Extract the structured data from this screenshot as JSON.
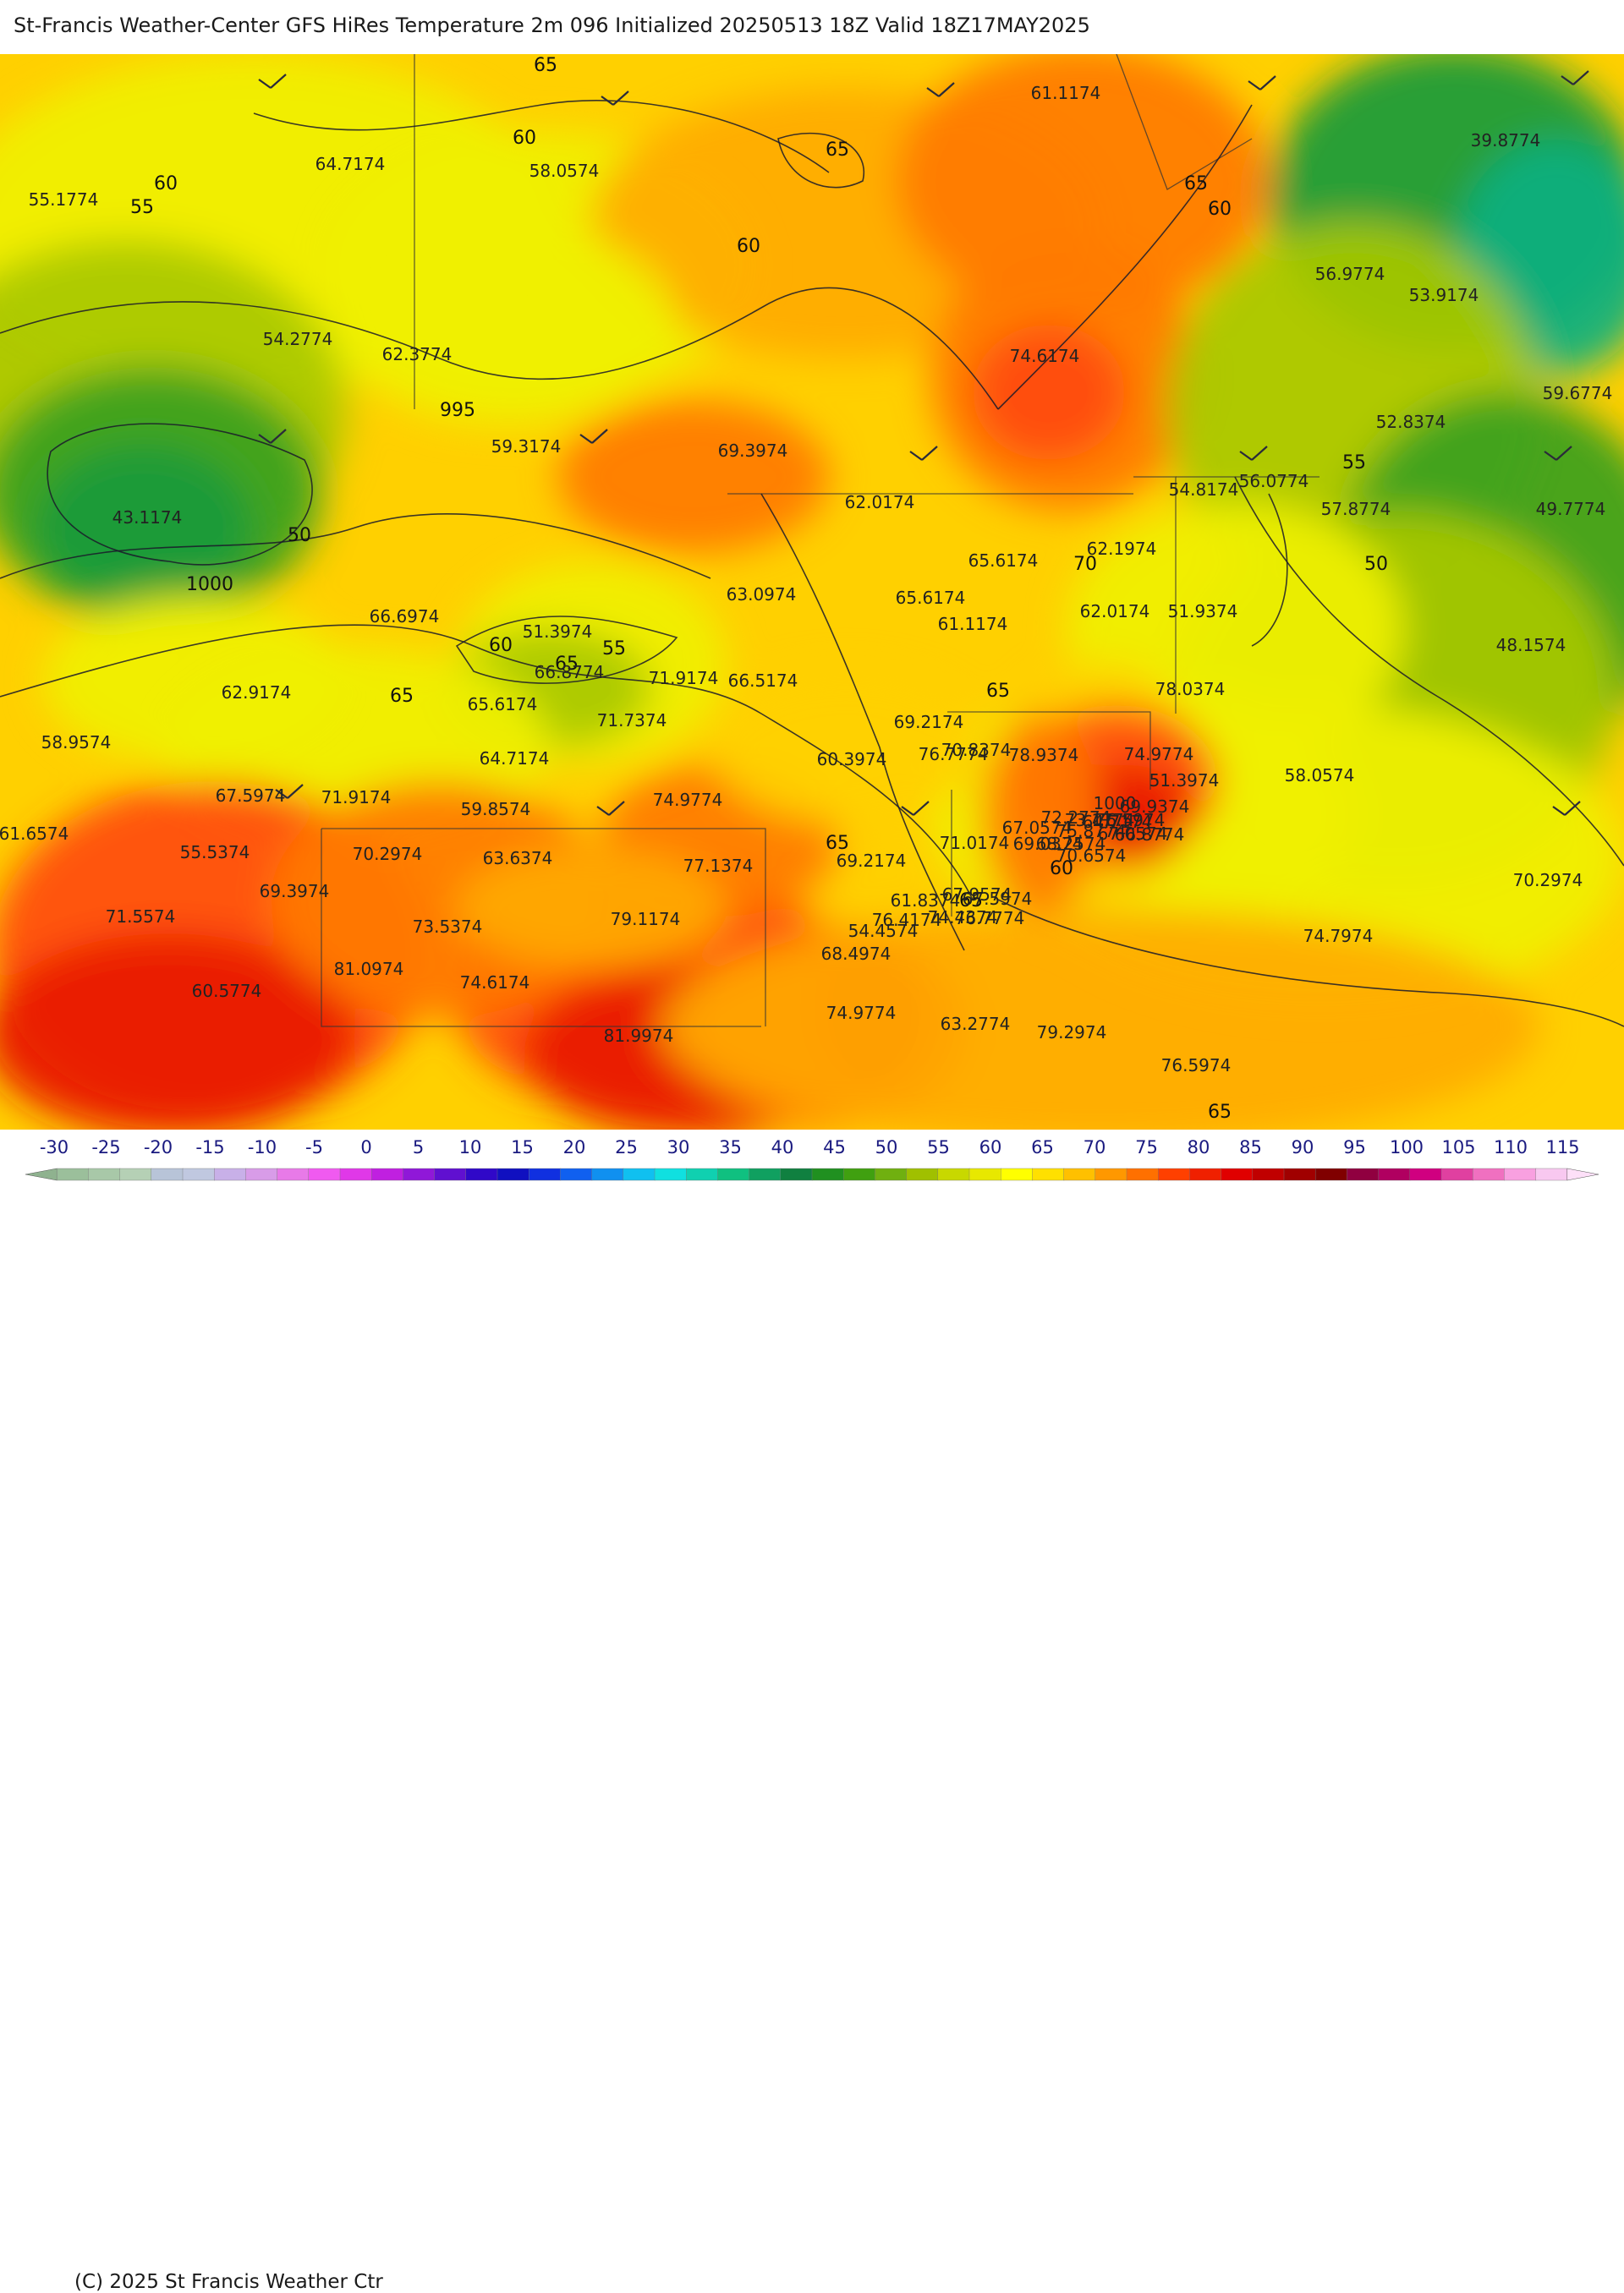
{
  "title": "St-Francis Weather-Center GFS HiRes Temperature 2m  096 Initialized 20250513 18Z Valid 18Z17MAY2025",
  "copyright": "(C) 2025 St Francis Weather Ctr",
  "contour_labels": [
    "65",
    "60",
    "55",
    "50",
    "70",
    "995",
    "1000"
  ],
  "point_values": [
    {
      "text": "55.1774",
      "region": "upper-left"
    },
    {
      "text": "64.7174",
      "region": "north-ontario"
    },
    {
      "text": "58.0574",
      "region": "north-quebec"
    },
    {
      "text": "61.1174",
      "region": "north-central"
    },
    {
      "text": "39.8774",
      "region": "labrador"
    },
    {
      "text": "56.9774",
      "region": "new-brunswick"
    },
    {
      "text": "53.9174",
      "region": "nova-scotia"
    },
    {
      "text": "54.2774",
      "region": "lake-superior-north"
    },
    {
      "text": "62.3774",
      "region": "ontario"
    },
    {
      "text": "74.6174",
      "region": "quebec-south"
    },
    {
      "text": "59.6774",
      "region": "atlantic-east"
    },
    {
      "text": "59.3174",
      "region": "ontario-south"
    },
    {
      "text": "69.3974",
      "region": "ottawa-valley"
    },
    {
      "text": "52.8374",
      "region": "maine-east"
    },
    {
      "text": "43.1174",
      "region": "wisconsin"
    },
    {
      "text": "62.0174",
      "region": "vermont-north"
    },
    {
      "text": "54.8174",
      "region": "maine"
    },
    {
      "text": "56.0774",
      "region": "maine-coast"
    },
    {
      "text": "57.8774",
      "region": "gulf-of-maine-north"
    },
    {
      "text": "49.7774",
      "region": "nova-scotia-south"
    },
    {
      "text": "65.6174",
      "region": "vermont"
    },
    {
      "text": "62.1974",
      "region": "new-hampshire"
    },
    {
      "text": "63.0974",
      "region": "upstate-new-york"
    },
    {
      "text": "66.6974",
      "region": "michigan"
    },
    {
      "text": "51.3974",
      "region": "lake-ontario"
    },
    {
      "text": "65.6174",
      "region": "adirondacks"
    },
    {
      "text": "62.0174",
      "region": "new-hampshire-south"
    },
    {
      "text": "51.9374",
      "region": "maine-south-coast"
    },
    {
      "text": "48.1574",
      "region": "gulf-of-maine"
    },
    {
      "text": "61.1174",
      "region": "berkshires"
    },
    {
      "text": "66.8774",
      "region": "lake-erie-east"
    },
    {
      "text": "71.9174",
      "region": "finger-lakes"
    },
    {
      "text": "66.5174",
      "region": "catskills"
    },
    {
      "text": "78.0374",
      "region": "massachusetts"
    },
    {
      "text": "62.9174",
      "region": "lake-michigan-east"
    },
    {
      "text": "65.6174",
      "region": "lake-erie"
    },
    {
      "text": "71.7374",
      "region": "western-new-york"
    },
    {
      "text": "69.2174",
      "region": "hudson-valley"
    },
    {
      "text": "70.8374",
      "region": "connecticut-north"
    },
    {
      "text": "58.9574",
      "region": "illinois"
    },
    {
      "text": "64.7174",
      "region": "ohio-north"
    },
    {
      "text": "60.3974",
      "region": "pennsylvania-ne"
    },
    {
      "text": "76.7774",
      "region": "connecticut"
    },
    {
      "text": "78.9374",
      "region": "rhode-island"
    },
    {
      "text": "74.9774",
      "region": "cape-cod"
    },
    {
      "text": "51.3974",
      "region": "atlantic-southeast"
    },
    {
      "text": "58.0574",
      "region": "indiana"
    },
    {
      "text": "67.5974",
      "region": "ohio"
    },
    {
      "text": "71.9174",
      "region": "pennsylvania-nw"
    },
    {
      "text": "1000",
      "region": "pennsylvania-center"
    },
    {
      "text": "69.9374",
      "region": "pennsylvania-center-east"
    },
    {
      "text": "76.5974",
      "region": "long-island-sound"
    },
    {
      "text": "73.1774",
      "region": "massachusetts-south"
    },
    {
      "text": "75.8774",
      "region": "connecticut-south"
    },
    {
      "text": "67.0574",
      "region": "long-island-east"
    },
    {
      "text": "61.6574",
      "region": "illinois-south"
    },
    {
      "text": "59.8574",
      "region": "ohio-east"
    },
    {
      "text": "74.9774",
      "region": "pennsylvania-center-south"
    },
    {
      "text": "71.0174",
      "region": "new-york-city-north"
    },
    {
      "text": "67.0574",
      "region": "long-island"
    },
    {
      "text": "69.0374",
      "region": "indiana-south"
    },
    {
      "text": "70.6574",
      "region": "ohio-central"
    },
    {
      "text": "68.2574",
      "region": "west-virginia-north"
    },
    {
      "text": "72.2774",
      "region": "pennsylvania-south"
    },
    {
      "text": "64.7174",
      "region": "pennsylvania-southeast"
    },
    {
      "text": "66.8774",
      "region": "new-jersey-north"
    },
    {
      "text": "55.5374",
      "region": "atlantic-east-south"
    },
    {
      "text": "70.2974",
      "region": "new-jersey"
    },
    {
      "text": "63.6374",
      "region": "new-york-bight"
    },
    {
      "text": "77.1374",
      "region": "kentucky-north"
    },
    {
      "text": "69.2174",
      "region": "indiana-southwest"
    },
    {
      "text": "70.2974",
      "region": "delaware-north"
    },
    {
      "text": "61.8374",
      "region": "new-jersey-coast"
    },
    {
      "text": "67.5974",
      "region": "west-virginia"
    },
    {
      "text": "69.3974",
      "region": "maryland-west"
    },
    {
      "text": "71.5574",
      "region": "maryland"
    },
    {
      "text": "54.4574",
      "region": "atlantic-south"
    },
    {
      "text": "74.4374",
      "region": "kentucky-east"
    },
    {
      "text": "76.4174",
      "region": "virginia-north"
    },
    {
      "text": "76.7774",
      "region": "delaware"
    },
    {
      "text": "73.5374",
      "region": "kentucky-west"
    },
    {
      "text": "79.1174",
      "region": "kentucky"
    },
    {
      "text": "68.4974",
      "region": "west-virginia-south"
    },
    {
      "text": "67.9574",
      "region": "virginia-west"
    },
    {
      "text": "74.7974",
      "region": "chesapeake"
    },
    {
      "text": "81.0974",
      "region": "delmarva"
    },
    {
      "text": "60.5774",
      "region": "offshore-mid-atlantic"
    },
    {
      "text": "74.6174",
      "region": "virginia"
    },
    {
      "text": "74.9774",
      "region": "virginia-east"
    },
    {
      "text": "63.2774",
      "region": "offshore-south"
    },
    {
      "text": "79.2974",
      "region": "tennessee"
    },
    {
      "text": "76.5974",
      "region": "virginia-southwest"
    },
    {
      "text": "81.9974",
      "region": "virginia-south"
    }
  ],
  "colorbar": {
    "unit_hint": "",
    "ticks": [
      "-30",
      "-25",
      "-20",
      "-15",
      "-10",
      "-5",
      "0",
      "5",
      "10",
      "15",
      "20",
      "25",
      "30",
      "35",
      "40",
      "45",
      "50",
      "55",
      "60",
      "65",
      "70",
      "75",
      "80",
      "85",
      "90",
      "95",
      "100",
      "105",
      "110",
      "115"
    ],
    "colors": [
      "#8fb28f",
      "#9bbf9b",
      "#a8c8a8",
      "#b5d0b5",
      "#b8c4d8",
      "#c0c8e0",
      "#c8b0e8",
      "#d89ce8",
      "#e87ae8",
      "#f05af0",
      "#e038e8",
      "#c020e0",
      "#9018d8",
      "#6010d0",
      "#3008c8",
      "#1010c0",
      "#1030e0",
      "#1060f0",
      "#1090f0",
      "#10c0f0",
      "#10e0e0",
      "#10d0b0",
      "#10c080",
      "#10a060",
      "#108040",
      "#209020",
      "#40a010",
      "#70b010",
      "#a0c000",
      "#c8d800",
      "#e8e800",
      "#ffff00",
      "#ffe000",
      "#ffc000",
      "#ff9800",
      "#ff7000",
      "#ff4000",
      "#f02000",
      "#e00000",
      "#c00000",
      "#a00000",
      "#800000",
      "#900040",
      "#b00060",
      "#d00080",
      "#e040a0",
      "#f070c0",
      "#f8a0e0",
      "#f8c8f0",
      "#fde0f8"
    ]
  },
  "map_colors": {
    "deep_green": "#1a9a3a",
    "green": "#3aa020",
    "lime": "#a8c800",
    "yellow": "#f0f000",
    "gold": "#ffd000",
    "orange": "#ffaa00",
    "dark_orange": "#ff7a00",
    "red_orange": "#ff4a10",
    "red": "#e81800",
    "teal": "#10b080"
  }
}
